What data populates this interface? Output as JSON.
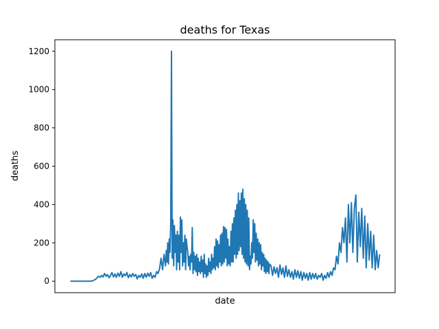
{
  "chart_data": {
    "type": "line",
    "title": "deaths for Texas",
    "xlabel": "date",
    "ylabel": "deaths",
    "x_tick_labels_shown": false,
    "ylim": [
      -60,
      1260
    ],
    "yticks": [
      0,
      200,
      400,
      600,
      800,
      1000,
      1200
    ],
    "grid": false,
    "legend": "none",
    "series": [
      {
        "color": "#1f77b4",
        "points": [
          [
            0,
            0
          ],
          [
            3,
            0
          ],
          [
            6,
            0
          ],
          [
            9,
            0
          ],
          [
            12,
            0
          ],
          [
            15,
            0
          ],
          [
            18,
            0
          ],
          [
            21,
            0
          ],
          [
            24,
            0
          ],
          [
            27,
            0
          ],
          [
            30,
            2
          ],
          [
            32,
            6
          ],
          [
            34,
            10
          ],
          [
            36,
            18
          ],
          [
            38,
            26
          ],
          [
            40,
            20
          ],
          [
            42,
            30
          ],
          [
            44,
            22
          ],
          [
            46,
            40
          ],
          [
            48,
            25
          ],
          [
            50,
            35
          ],
          [
            52,
            18
          ],
          [
            54,
            30
          ],
          [
            56,
            45
          ],
          [
            58,
            22
          ],
          [
            60,
            38
          ],
          [
            62,
            20
          ],
          [
            64,
            42
          ],
          [
            66,
            25
          ],
          [
            68,
            50
          ],
          [
            70,
            20
          ],
          [
            72,
            38
          ],
          [
            74,
            28
          ],
          [
            76,
            45
          ],
          [
            78,
            18
          ],
          [
            80,
            35
          ],
          [
            82,
            22
          ],
          [
            84,
            40
          ],
          [
            86,
            25
          ],
          [
            88,
            35
          ],
          [
            90,
            12
          ],
          [
            92,
            30
          ],
          [
            94,
            20
          ],
          [
            96,
            38
          ],
          [
            98,
            15
          ],
          [
            100,
            40
          ],
          [
            102,
            20
          ],
          [
            104,
            42
          ],
          [
            106,
            25
          ],
          [
            108,
            45
          ],
          [
            110,
            15
          ],
          [
            112,
            30
          ],
          [
            114,
            20
          ],
          [
            116,
            50
          ],
          [
            118,
            40
          ],
          [
            120,
            65
          ],
          [
            122,
            120
          ],
          [
            124,
            60
          ],
          [
            126,
            140
          ],
          [
            128,
            80
          ],
          [
            129,
            160
          ],
          [
            130,
            100
          ],
          [
            131,
            200
          ],
          [
            132,
            90
          ],
          [
            133,
            220
          ],
          [
            134,
            150
          ],
          [
            135,
            300
          ],
          [
            136,
            1200
          ],
          [
            137,
            120
          ],
          [
            138,
            320
          ],
          [
            139,
            80
          ],
          [
            140,
            290
          ],
          [
            141,
            150
          ],
          [
            142,
            240
          ],
          [
            143,
            60
          ],
          [
            144,
            260
          ],
          [
            145,
            100
          ],
          [
            146,
            240
          ],
          [
            147,
            60
          ],
          [
            148,
            335
          ],
          [
            149,
            150
          ],
          [
            150,
            320
          ],
          [
            151,
            80
          ],
          [
            152,
            200
          ],
          [
            153,
            100
          ],
          [
            154,
            240
          ],
          [
            155,
            60
          ],
          [
            156,
            220
          ],
          [
            157,
            180
          ],
          [
            158,
            150
          ],
          [
            159,
            80
          ],
          [
            160,
            130
          ],
          [
            161,
            60
          ],
          [
            162,
            140
          ],
          [
            163,
            100
          ],
          [
            164,
            280
          ],
          [
            165,
            40
          ],
          [
            166,
            150
          ],
          [
            167,
            60
          ],
          [
            168,
            130
          ],
          [
            169,
            50
          ],
          [
            170,
            140
          ],
          [
            171,
            30
          ],
          [
            172,
            120
          ],
          [
            173,
            50
          ],
          [
            174,
            100
          ],
          [
            175,
            40
          ],
          [
            176,
            130
          ],
          [
            177,
            50
          ],
          [
            178,
            110
          ],
          [
            179,
            20
          ],
          [
            180,
            140
          ],
          [
            181,
            40
          ],
          [
            182,
            90
          ],
          [
            183,
            20
          ],
          [
            184,
            80
          ],
          [
            185,
            30
          ],
          [
            186,
            120
          ],
          [
            187,
            50
          ],
          [
            188,
            100
          ],
          [
            189,
            40
          ],
          [
            190,
            140
          ],
          [
            191,
            60
          ],
          [
            192,
            120
          ],
          [
            193,
            70
          ],
          [
            194,
            180
          ],
          [
            195,
            60
          ],
          [
            196,
            220
          ],
          [
            197,
            80
          ],
          [
            198,
            210
          ],
          [
            199,
            70
          ],
          [
            200,
            190
          ],
          [
            201,
            100
          ],
          [
            202,
            240
          ],
          [
            203,
            80
          ],
          [
            204,
            250
          ],
          [
            205,
            90
          ],
          [
            206,
            285
          ],
          [
            207,
            100
          ],
          [
            208,
            280
          ],
          [
            209,
            120
          ],
          [
            210,
            270
          ],
          [
            211,
            80
          ],
          [
            212,
            220
          ],
          [
            213,
            90
          ],
          [
            214,
            180
          ],
          [
            215,
            80
          ],
          [
            216,
            260
          ],
          [
            217,
            100
          ],
          [
            218,
            300
          ],
          [
            219,
            100
          ],
          [
            220,
            330
          ],
          [
            221,
            140
          ],
          [
            222,
            370
          ],
          [
            223,
            120
          ],
          [
            224,
            400
          ],
          [
            225,
            140
          ],
          [
            226,
            460
          ],
          [
            227,
            160
          ],
          [
            228,
            420
          ],
          [
            229,
            180
          ],
          [
            230,
            460
          ],
          [
            231,
            140
          ],
          [
            232,
            480
          ],
          [
            233,
            120
          ],
          [
            234,
            430
          ],
          [
            235,
            100
          ],
          [
            236,
            400
          ],
          [
            237,
            90
          ],
          [
            238,
            370
          ],
          [
            239,
            80
          ],
          [
            240,
            330
          ],
          [
            241,
            60
          ],
          [
            242,
            130
          ],
          [
            243,
            90
          ],
          [
            244,
            200
          ],
          [
            245,
            120
          ],
          [
            246,
            320
          ],
          [
            247,
            150
          ],
          [
            248,
            300
          ],
          [
            249,
            100
          ],
          [
            250,
            250
          ],
          [
            251,
            110
          ],
          [
            252,
            220
          ],
          [
            253,
            80
          ],
          [
            254,
            200
          ],
          [
            255,
            90
          ],
          [
            256,
            190
          ],
          [
            257,
            60
          ],
          [
            258,
            150
          ],
          [
            259,
            80
          ],
          [
            260,
            140
          ],
          [
            261,
            50
          ],
          [
            262,
            120
          ],
          [
            263,
            40
          ],
          [
            264,
            110
          ],
          [
            265,
            50
          ],
          [
            266,
            100
          ],
          [
            267,
            40
          ],
          [
            268,
            90
          ],
          [
            270,
            80
          ],
          [
            272,
            30
          ],
          [
            274,
            75
          ],
          [
            276,
            40
          ],
          [
            278,
            70
          ],
          [
            280,
            20
          ],
          [
            282,
            85
          ],
          [
            284,
            35
          ],
          [
            286,
            70
          ],
          [
            288,
            20
          ],
          [
            290,
            80
          ],
          [
            292,
            25
          ],
          [
            294,
            60
          ],
          [
            296,
            20
          ],
          [
            298,
            50
          ],
          [
            300,
            10
          ],
          [
            302,
            60
          ],
          [
            304,
            20
          ],
          [
            306,
            55
          ],
          [
            308,
            15
          ],
          [
            310,
            50
          ],
          [
            312,
            5
          ],
          [
            314,
            45
          ],
          [
            316,
            15
          ],
          [
            318,
            40
          ],
          [
            320,
            5
          ],
          [
            322,
            45
          ],
          [
            324,
            10
          ],
          [
            326,
            40
          ],
          [
            328,
            15
          ],
          [
            330,
            40
          ],
          [
            332,
            10
          ],
          [
            334,
            30
          ],
          [
            336,
            20
          ],
          [
            338,
            40
          ],
          [
            340,
            5
          ],
          [
            342,
            30
          ],
          [
            344,
            15
          ],
          [
            346,
            45
          ],
          [
            348,
            20
          ],
          [
            350,
            50
          ],
          [
            352,
            30
          ],
          [
            354,
            70
          ],
          [
            356,
            60
          ],
          [
            358,
            130
          ],
          [
            360,
            90
          ],
          [
            362,
            200
          ],
          [
            364,
            150
          ],
          [
            366,
            280
          ],
          [
            368,
            200
          ],
          [
            370,
            330
          ],
          [
            372,
            100
          ],
          [
            374,
            400
          ],
          [
            376,
            200
          ],
          [
            378,
            410
          ],
          [
            380,
            150
          ],
          [
            382,
            380
          ],
          [
            384,
            450
          ],
          [
            386,
            100
          ],
          [
            388,
            360
          ],
          [
            390,
            180
          ],
          [
            392,
            380
          ],
          [
            394,
            120
          ],
          [
            396,
            340
          ],
          [
            398,
            70
          ],
          [
            400,
            300
          ],
          [
            402,
            110
          ],
          [
            404,
            260
          ],
          [
            406,
            70
          ],
          [
            408,
            240
          ],
          [
            410,
            60
          ],
          [
            412,
            160
          ],
          [
            414,
            70
          ],
          [
            416,
            140
          ]
        ]
      }
    ]
  }
}
